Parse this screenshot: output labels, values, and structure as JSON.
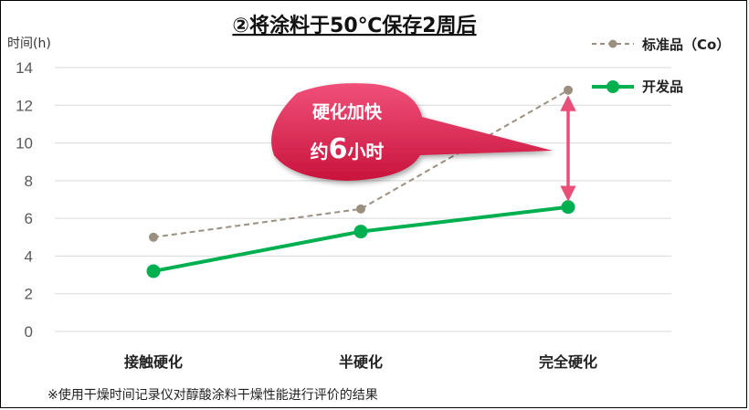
{
  "chart_data": {
    "type": "line",
    "title": "②将涂料于50℃保存2周后",
    "ylabel": "时间(h)",
    "xlabel": "",
    "ylim": [
      0,
      14
    ],
    "yticks": [
      0,
      2,
      4,
      6,
      8,
      10,
      12,
      14
    ],
    "categories": [
      "接触硬化",
      "半硬化",
      "完全硬化"
    ],
    "grid": true,
    "legend_position": "top-right",
    "series": [
      {
        "name": "标准品（Co）",
        "values": [
          5.0,
          6.5,
          12.8
        ],
        "color": "#9b9080",
        "style": "dashed"
      },
      {
        "name": "开发品",
        "values": [
          3.2,
          5.3,
          6.6
        ],
        "color": "#00b050",
        "style": "solid"
      }
    ],
    "annotation": {
      "line1": "硬化加快",
      "line2_prefix": "约",
      "line2_number": "6",
      "line2_suffix": "小时",
      "color": "#e0305a",
      "arrow_color": "#e8507a"
    }
  },
  "footnote": "※使用干燥时间记录仪对醇酸涂料干燥性能进行评价的结果"
}
